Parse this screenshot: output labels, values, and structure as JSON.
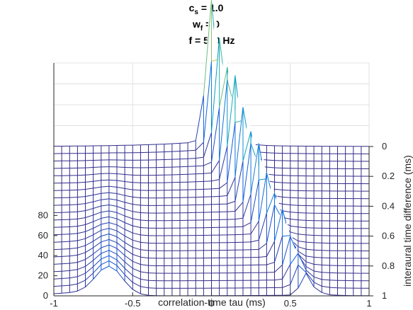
{
  "chart_data": {
    "type": "waterfall-mesh",
    "title_lines": [
      {
        "main": "c",
        "sub": "s",
        "rest": " = 1.0"
      },
      {
        "main": "w",
        "sub": "f",
        "rest": " = 0"
      },
      {
        "main": "f = 500 Hz",
        "sub": "",
        "rest": ""
      }
    ],
    "xlabel": "correlation-time tau (ms)",
    "ylabel_right": "interaural time difference (ms)",
    "x_ticks": [
      "-1",
      "-0.5",
      "0",
      "0.5",
      "1"
    ],
    "x_tick_values": [
      -1,
      -0.5,
      0,
      0.5,
      1
    ],
    "y_left_ticks": [
      "0",
      "20",
      "40",
      "60",
      "80"
    ],
    "y_left_tick_values": [
      0,
      20,
      40,
      60,
      80
    ],
    "y_right_ticks": [
      "0",
      "0.2",
      "0.4",
      "0.6",
      "0.8",
      "1"
    ],
    "y_right_tick_values": [
      0,
      0.2,
      0.4,
      0.6,
      0.8,
      1
    ],
    "xlim": [
      -1,
      1
    ],
    "zlim": [
      0,
      160
    ],
    "itd_range": [
      0,
      1
    ],
    "itd_rows": 21,
    "tau_columns": 40,
    "peak_height_at_itd0": 143,
    "peak_height_at_itd1": 22,
    "side_lobe_tau": -0.65,
    "side_lobe_height_at_itd1": 28,
    "grid": true,
    "colormap": "parula"
  }
}
